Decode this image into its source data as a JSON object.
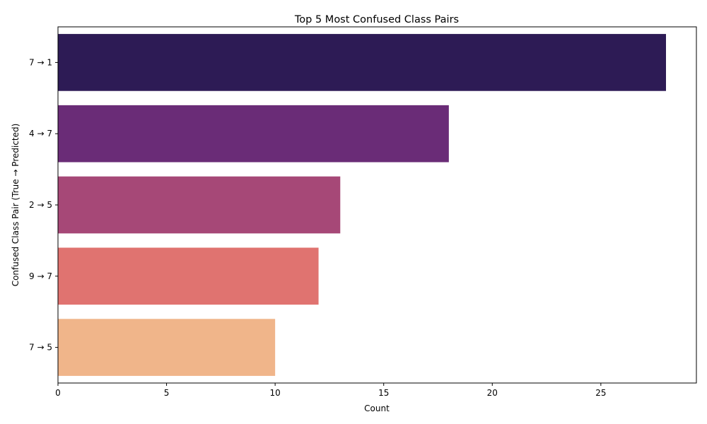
{
  "chart_data": {
    "type": "bar",
    "orientation": "horizontal",
    "title": "Top 5 Most Confused Class Pairs",
    "xlabel": "Count",
    "ylabel": "Confused Class Pair (True → Predicted)",
    "categories": [
      "7 → 1",
      "4 → 7",
      "2 → 5",
      "9 → 7",
      "7 → 5"
    ],
    "values": [
      28,
      18,
      13,
      12,
      10
    ],
    "colors": [
      "#2d1b55",
      "#6a2c77",
      "#a64877",
      "#e07370",
      "#f0b58a"
    ],
    "xlim": [
      0,
      29.4
    ],
    "xticks": [
      0,
      5,
      10,
      15,
      20,
      25
    ],
    "grid": false,
    "legend": "none"
  }
}
